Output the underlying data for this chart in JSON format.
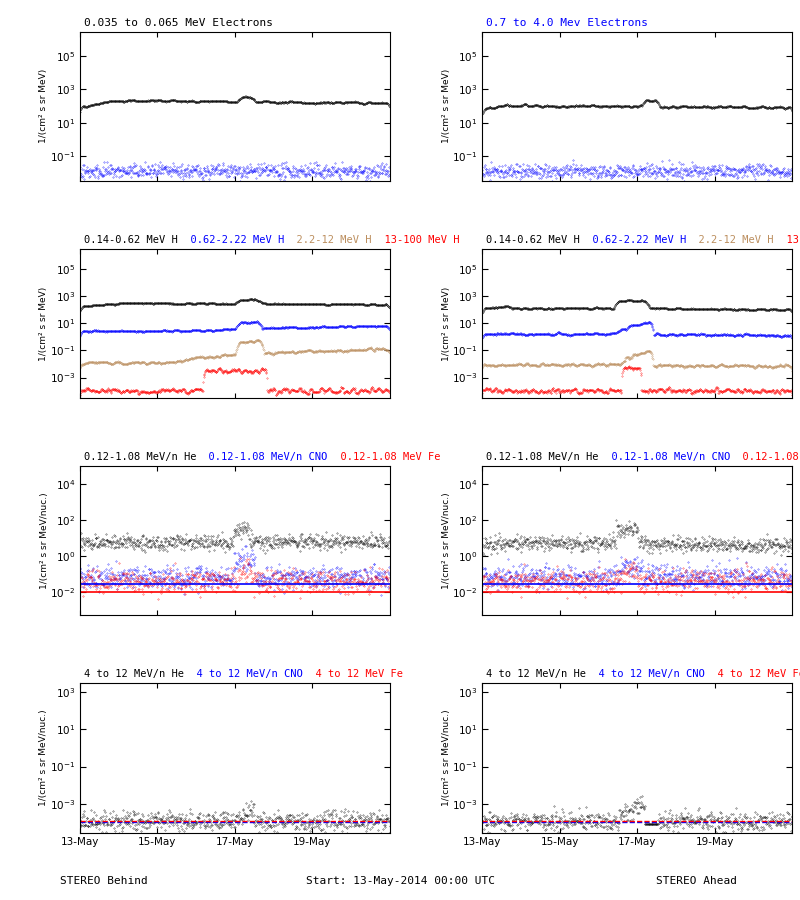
{
  "title_top_left": "0.035 to 0.065 MeV Electrons",
  "title_top_right": "0.7 to 4.0 Mev Electrons",
  "title_row2_parts": [
    [
      "0.14-0.62 MeV H",
      "black"
    ],
    [
      "  0.62-2.22 MeV H",
      "blue"
    ],
    [
      "  2.2-12 MeV H",
      "#BC8F5F"
    ],
    [
      "  13-100 MeV H",
      "red"
    ]
  ],
  "title_row3_parts": [
    [
      "0.12-1.08 MeV/n He",
      "black"
    ],
    [
      "  0.12-1.08 MeV/n CNO",
      "blue"
    ],
    [
      "  0.12-1.08 MeV Fe",
      "red"
    ]
  ],
  "title_row4_parts": [
    [
      "4 to 12 MeV/n He",
      "black"
    ],
    [
      "  4 to 12 MeV/n CNO",
      "blue"
    ],
    [
      "  4 to 12 MeV Fe",
      "red"
    ]
  ],
  "ylabel_electrons": "1/(cm² s sr MeV)",
  "ylabel_heavy": "1/(cm² s sr MeV/nuc.)",
  "xlabel_left": "STEREO Behind",
  "xlabel_right": "STEREO Ahead",
  "xlabel_center": "Start: 13-May-2014 00:00 UTC",
  "xtick_labels": [
    "13-May",
    "15-May",
    "17-May",
    "19-May"
  ],
  "xtick_pos": [
    0,
    2,
    4,
    6
  ],
  "row1_ylim": [
    0.003,
    3000000
  ],
  "row2_ylim": [
    3e-05,
    3000000
  ],
  "row3_ylim": [
    0.0005,
    100000
  ],
  "row4_ylim": [
    3e-05,
    3000
  ],
  "seed": 42
}
